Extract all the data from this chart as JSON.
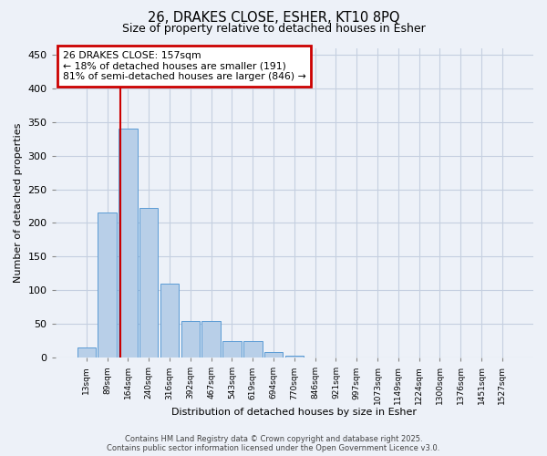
{
  "title_line1": "26, DRAKES CLOSE, ESHER, KT10 8PQ",
  "title_line2": "Size of property relative to detached houses in Esher",
  "xlabel": "Distribution of detached houses by size in Esher",
  "ylabel": "Number of detached properties",
  "categories": [
    "13sqm",
    "89sqm",
    "164sqm",
    "240sqm",
    "316sqm",
    "392sqm",
    "467sqm",
    "543sqm",
    "619sqm",
    "694sqm",
    "770sqm",
    "846sqm",
    "921sqm",
    "997sqm",
    "1073sqm",
    "1149sqm",
    "1224sqm",
    "1300sqm",
    "1376sqm",
    "1451sqm",
    "1527sqm"
  ],
  "values": [
    15,
    216,
    340,
    222,
    110,
    55,
    55,
    25,
    25,
    8,
    3,
    0,
    0,
    0,
    0,
    0,
    0,
    0,
    0,
    0,
    0
  ],
  "bar_color": "#b8cfe8",
  "bar_edge_color": "#5b9bd5",
  "ylim": [
    0,
    460
  ],
  "yticks": [
    0,
    50,
    100,
    150,
    200,
    250,
    300,
    350,
    400,
    450
  ],
  "property_label": "26 DRAKES CLOSE: 157sqm",
  "annotation_line1": "← 18% of detached houses are smaller (191)",
  "annotation_line2": "81% of semi-detached houses are larger (846) →",
  "vline_x_index": 1.62,
  "annotation_box_facecolor": "#ffffff",
  "annotation_box_edgecolor": "#cc0000",
  "footer_line1": "Contains HM Land Registry data © Crown copyright and database right 2025.",
  "footer_line2": "Contains public sector information licensed under the Open Government Licence v3.0.",
  "background_color": "#edf1f8",
  "grid_color": "#c5cfe0",
  "vline_color": "#cc0000"
}
